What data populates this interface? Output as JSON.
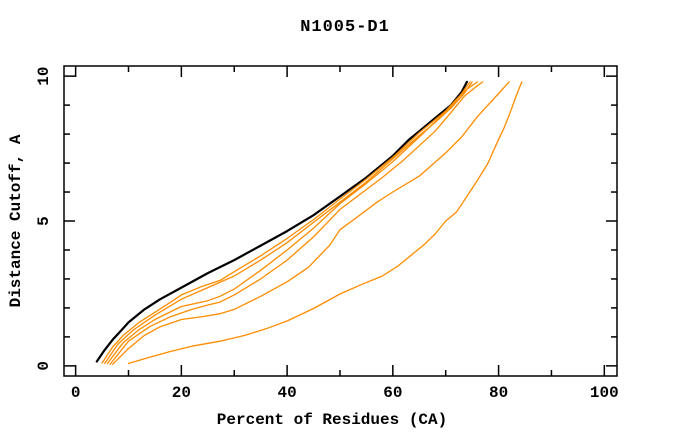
{
  "title": "N1005-D1",
  "colors": {
    "background": "#ffffff",
    "axis": "#000000",
    "black_curve": "#000000",
    "orange_curve": "#ff8c00"
  },
  "x_axis": {
    "label": "Percent of Residues (CA)",
    "major_ticks": [
      0,
      20,
      40,
      60,
      80,
      100
    ],
    "minor_ticks": [
      10,
      30,
      50,
      70,
      90
    ]
  },
  "y_axis": {
    "label": "Distance Cutoff, A",
    "major_ticks": [
      0,
      5,
      10
    ],
    "minor_ticks": [
      1,
      2,
      3,
      4,
      6,
      7,
      8,
      9
    ]
  },
  "chart_data": {
    "type": "line",
    "title": "N1005-D1",
    "xlabel": "Percent of Residues (CA)",
    "ylabel": "Distance Cutoff, A",
    "xlim": [
      0,
      100
    ],
    "ylim": [
      0,
      10
    ],
    "grid": false,
    "legend": null,
    "series": [
      {
        "name": "black-curve",
        "color": "#000000",
        "width": 2.2,
        "points": [
          [
            4,
            0.15
          ],
          [
            5.5,
            0.55
          ],
          [
            7,
            0.9
          ],
          [
            8.5,
            1.2
          ],
          [
            10,
            1.5
          ],
          [
            13,
            1.95
          ],
          [
            16,
            2.3
          ],
          [
            20,
            2.7
          ],
          [
            25,
            3.2
          ],
          [
            30,
            3.65
          ],
          [
            35,
            4.15
          ],
          [
            40,
            4.65
          ],
          [
            45,
            5.2
          ],
          [
            50,
            5.85
          ],
          [
            55,
            6.5
          ],
          [
            60,
            7.25
          ],
          [
            63,
            7.8
          ],
          [
            65,
            8.1
          ],
          [
            68,
            8.55
          ],
          [
            71,
            9.0
          ],
          [
            73,
            9.45
          ],
          [
            74,
            9.8
          ]
        ]
      },
      {
        "name": "orange-curve-1",
        "color": "#ff8c00",
        "width": 1.3,
        "points": [
          [
            5,
            0.1
          ],
          [
            7,
            0.65
          ],
          [
            9,
            1.05
          ],
          [
            12,
            1.5
          ],
          [
            15,
            1.85
          ],
          [
            18,
            2.2
          ],
          [
            20,
            2.45
          ],
          [
            24,
            2.75
          ],
          [
            27.3,
            2.95
          ],
          [
            30,
            3.25
          ],
          [
            35,
            3.8
          ],
          [
            40,
            4.4
          ],
          [
            45,
            5.05
          ],
          [
            50,
            5.76
          ],
          [
            55,
            6.45
          ],
          [
            60,
            7.2
          ],
          [
            65,
            8.05
          ],
          [
            68,
            8.5
          ],
          [
            71,
            8.95
          ],
          [
            73,
            9.4
          ],
          [
            74.6,
            9.8
          ]
        ]
      },
      {
        "name": "orange-curve-2",
        "color": "#ff8c00",
        "width": 1.3,
        "points": [
          [
            5.5,
            0.08
          ],
          [
            8,
            0.75
          ],
          [
            11,
            1.25
          ],
          [
            15,
            1.75
          ],
          [
            20,
            2.3
          ],
          [
            25,
            2.7
          ],
          [
            30,
            3.1
          ],
          [
            35,
            3.65
          ],
          [
            40,
            4.25
          ],
          [
            45,
            4.95
          ],
          [
            50,
            5.65
          ],
          [
            55,
            6.35
          ],
          [
            60,
            7.15
          ],
          [
            65,
            7.95
          ],
          [
            68,
            8.4
          ],
          [
            71,
            8.9
          ],
          [
            73.5,
            9.4
          ],
          [
            75,
            9.8
          ]
        ]
      },
      {
        "name": "orange-curve-3",
        "color": "#ff8c00",
        "width": 1.3,
        "points": [
          [
            6,
            0.08
          ],
          [
            9,
            0.8
          ],
          [
            12,
            1.25
          ],
          [
            15,
            1.6
          ],
          [
            20,
            2.05
          ],
          [
            25,
            2.25
          ],
          [
            27.3,
            2.4
          ],
          [
            30,
            2.65
          ],
          [
            35,
            3.3
          ],
          [
            40,
            4.0
          ],
          [
            45,
            4.75
          ],
          [
            50,
            5.6
          ],
          [
            55,
            6.3
          ],
          [
            60,
            7.05
          ],
          [
            65,
            7.9
          ],
          [
            69,
            8.6
          ],
          [
            72,
            9.2
          ],
          [
            74,
            9.55
          ],
          [
            76,
            9.8
          ]
        ]
      },
      {
        "name": "orange-curve-4",
        "color": "#ff8c00",
        "width": 1.3,
        "points": [
          [
            6.5,
            0.05
          ],
          [
            10,
            0.85
          ],
          [
            14,
            1.35
          ],
          [
            18,
            1.7
          ],
          [
            22,
            1.95
          ],
          [
            25,
            2.1
          ],
          [
            27.3,
            2.2
          ],
          [
            30,
            2.45
          ],
          [
            35,
            3.0
          ],
          [
            40,
            3.65
          ],
          [
            45,
            4.45
          ],
          [
            50,
            5.4
          ],
          [
            54,
            5.95
          ],
          [
            58,
            6.5
          ],
          [
            62,
            7.1
          ],
          [
            65,
            7.6
          ],
          [
            68,
            8.1
          ],
          [
            71,
            8.75
          ],
          [
            73.5,
            9.3
          ],
          [
            75.5,
            9.6
          ],
          [
            77,
            9.8
          ]
        ]
      },
      {
        "name": "orange-curve-5",
        "color": "#ff8c00",
        "width": 1.3,
        "points": [
          [
            7,
            0.05
          ],
          [
            10,
            0.6
          ],
          [
            13,
            1.05
          ],
          [
            16,
            1.35
          ],
          [
            20,
            1.6
          ],
          [
            24,
            1.7
          ],
          [
            27.3,
            1.8
          ],
          [
            30,
            1.95
          ],
          [
            35,
            2.4
          ],
          [
            40,
            2.9
          ],
          [
            44,
            3.4
          ],
          [
            48,
            4.15
          ],
          [
            50,
            4.7
          ],
          [
            53,
            5.1
          ],
          [
            57,
            5.65
          ],
          [
            60,
            6.0
          ],
          [
            65,
            6.55
          ],
          [
            70,
            7.35
          ],
          [
            73,
            7.9
          ],
          [
            76,
            8.6
          ],
          [
            78,
            9.0
          ],
          [
            80,
            9.4
          ],
          [
            82,
            9.8
          ]
        ]
      },
      {
        "name": "orange-curve-6",
        "color": "#ff8c00",
        "width": 1.3,
        "points": [
          [
            10,
            0.08
          ],
          [
            14,
            0.3
          ],
          [
            18,
            0.5
          ],
          [
            22,
            0.68
          ],
          [
            27.3,
            0.85
          ],
          [
            32,
            1.05
          ],
          [
            36,
            1.28
          ],
          [
            40,
            1.55
          ],
          [
            45,
            1.98
          ],
          [
            50,
            2.48
          ],
          [
            54,
            2.8
          ],
          [
            58,
            3.1
          ],
          [
            61,
            3.45
          ],
          [
            64,
            3.9
          ],
          [
            66,
            4.2
          ],
          [
            68,
            4.55
          ],
          [
            70,
            5.0
          ],
          [
            72,
            5.3
          ],
          [
            74,
            5.85
          ],
          [
            76,
            6.4
          ],
          [
            78,
            7.0
          ],
          [
            79.7,
            7.7
          ],
          [
            81,
            8.2
          ],
          [
            82.1,
            8.7
          ],
          [
            83.3,
            9.3
          ],
          [
            84.4,
            9.8
          ]
        ]
      }
    ]
  }
}
